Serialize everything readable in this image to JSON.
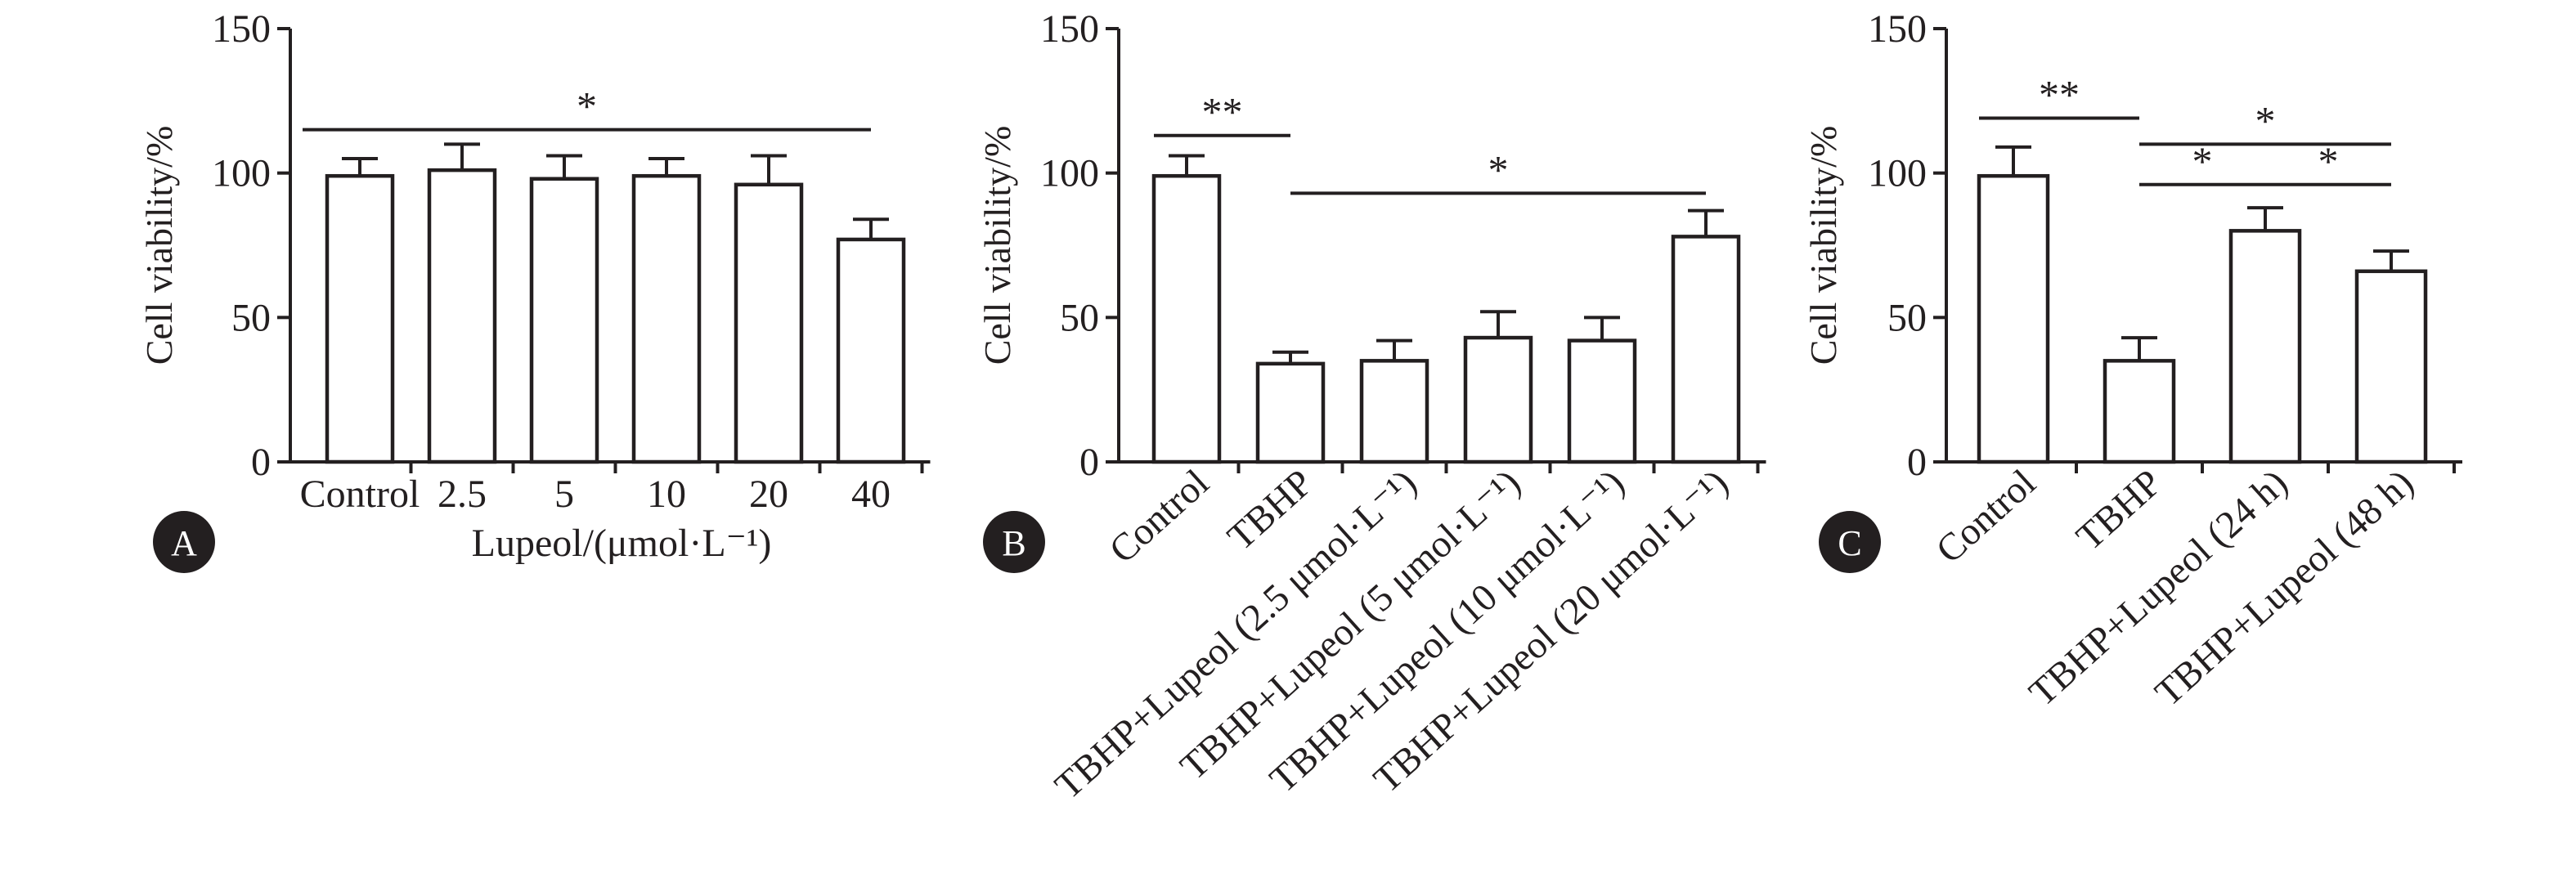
{
  "chart_data": [
    {
      "type": "bar",
      "panel_label": "A",
      "ylabel": "Cell viability/%",
      "xlabel": "Lupeol/(μmol·L⁻¹)",
      "ylim": [
        0,
        150
      ],
      "yticks": [
        0,
        50,
        100,
        150
      ],
      "categories": [
        "Control",
        "2.5",
        "5",
        "10",
        "20",
        "40"
      ],
      "values": [
        99,
        101,
        98,
        99,
        96,
        77
      ],
      "errors": [
        6,
        9,
        8,
        6,
        10,
        7
      ],
      "significance": [
        {
          "from": 0,
          "to": 5,
          "label": "*",
          "y": 115
        }
      ]
    },
    {
      "type": "bar",
      "panel_label": "B",
      "ylabel": "Cell viability/%",
      "xlabel": "",
      "ylim": [
        0,
        150
      ],
      "yticks": [
        0,
        50,
        100,
        150
      ],
      "categories": [
        "Control",
        "TBHP",
        "TBHP+Lupeol (2.5 μmol·L⁻¹)",
        "TBHP+Lupeol (5 μmol·L⁻¹)",
        "TBHP+Lupeol (10 μmol·L⁻¹)",
        "TBHP+Lupeol (20 μmol·L⁻¹)"
      ],
      "values": [
        99,
        34,
        35,
        43,
        42,
        78
      ],
      "errors": [
        7,
        4,
        7,
        9,
        8,
        9
      ],
      "significance": [
        {
          "from": 0,
          "to": 1,
          "label": "**",
          "y": 113
        },
        {
          "from": 1,
          "to": 5,
          "label": "*",
          "y": 93
        }
      ]
    },
    {
      "type": "bar",
      "panel_label": "C",
      "ylabel": "Cell viability/%",
      "xlabel": "",
      "ylim": [
        0,
        150
      ],
      "yticks": [
        0,
        50,
        100,
        150
      ],
      "categories": [
        "Control",
        "TBHP",
        "TBHP+Lupeol (24 h)",
        "TBHP+Lupeol (48 h)"
      ],
      "values": [
        99,
        35,
        80,
        66
      ],
      "errors": [
        10,
        8,
        8,
        7
      ],
      "significance": [
        {
          "from": 0,
          "to": 1,
          "label": "**",
          "y": 119
        },
        {
          "from": 1,
          "to": 3,
          "label": "*",
          "y": 110
        },
        {
          "from": 1,
          "to": 2,
          "label": "*",
          "y": 96
        },
        {
          "from": 2,
          "to": 3,
          "label": "*",
          "y": 96
        }
      ]
    }
  ]
}
